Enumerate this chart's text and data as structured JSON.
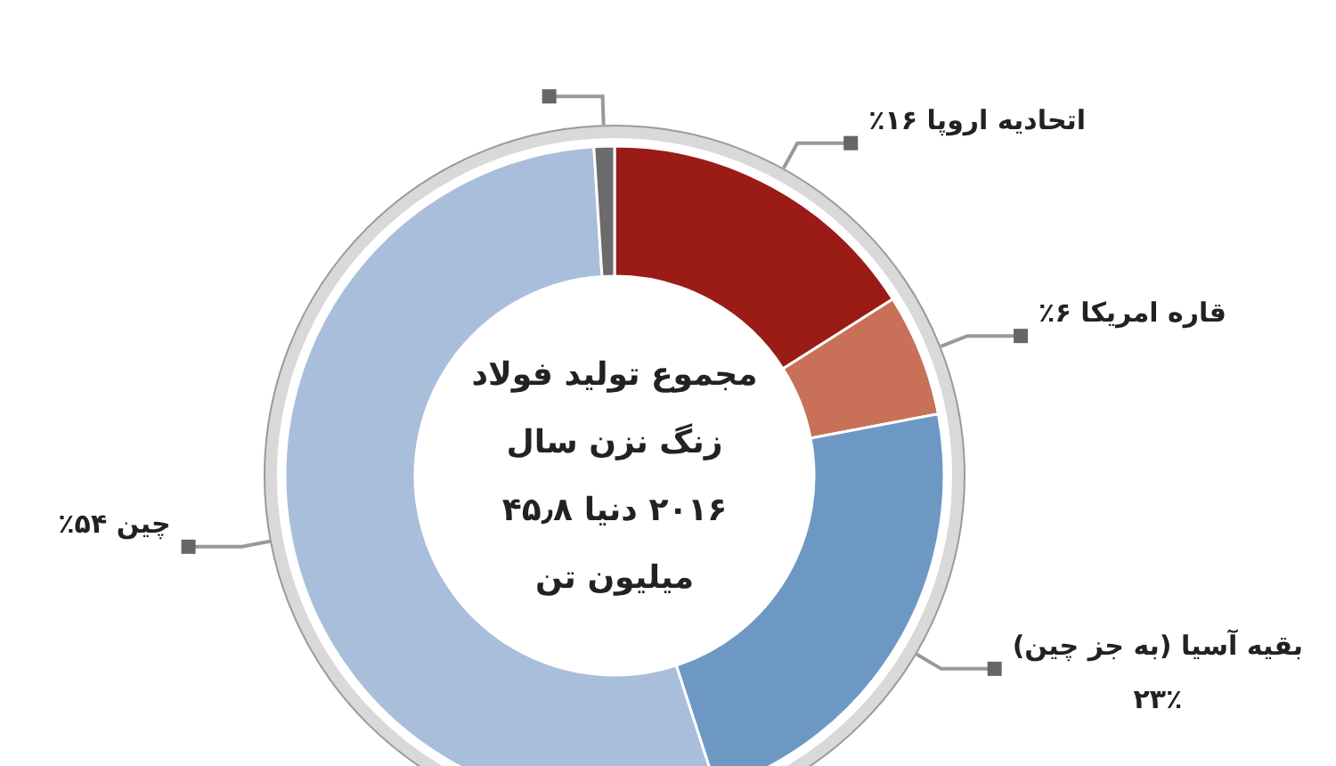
{
  "chart_data": {
    "type": "donut",
    "title": "مجموع تولید فولاد زنگ نزن سال ۲۰۱۶ دنیا ۴۵٫۸ میلیون تن",
    "categories": [
      "اتحادیه اروپا",
      "قاره امریکا",
      "بقیه آسیا (به جز چین)",
      "چین",
      null
    ],
    "values": [
      16,
      6,
      23,
      54,
      1
    ],
    "value_labels": [
      "۱۶٪",
      "۶٪",
      "۲۳٪",
      "۵۴٪",
      null
    ],
    "colors": [
      "#9b1b17",
      "#c87058",
      "#6d98c4",
      "#a9bedb",
      "#6b6b6b"
    ]
  }
}
